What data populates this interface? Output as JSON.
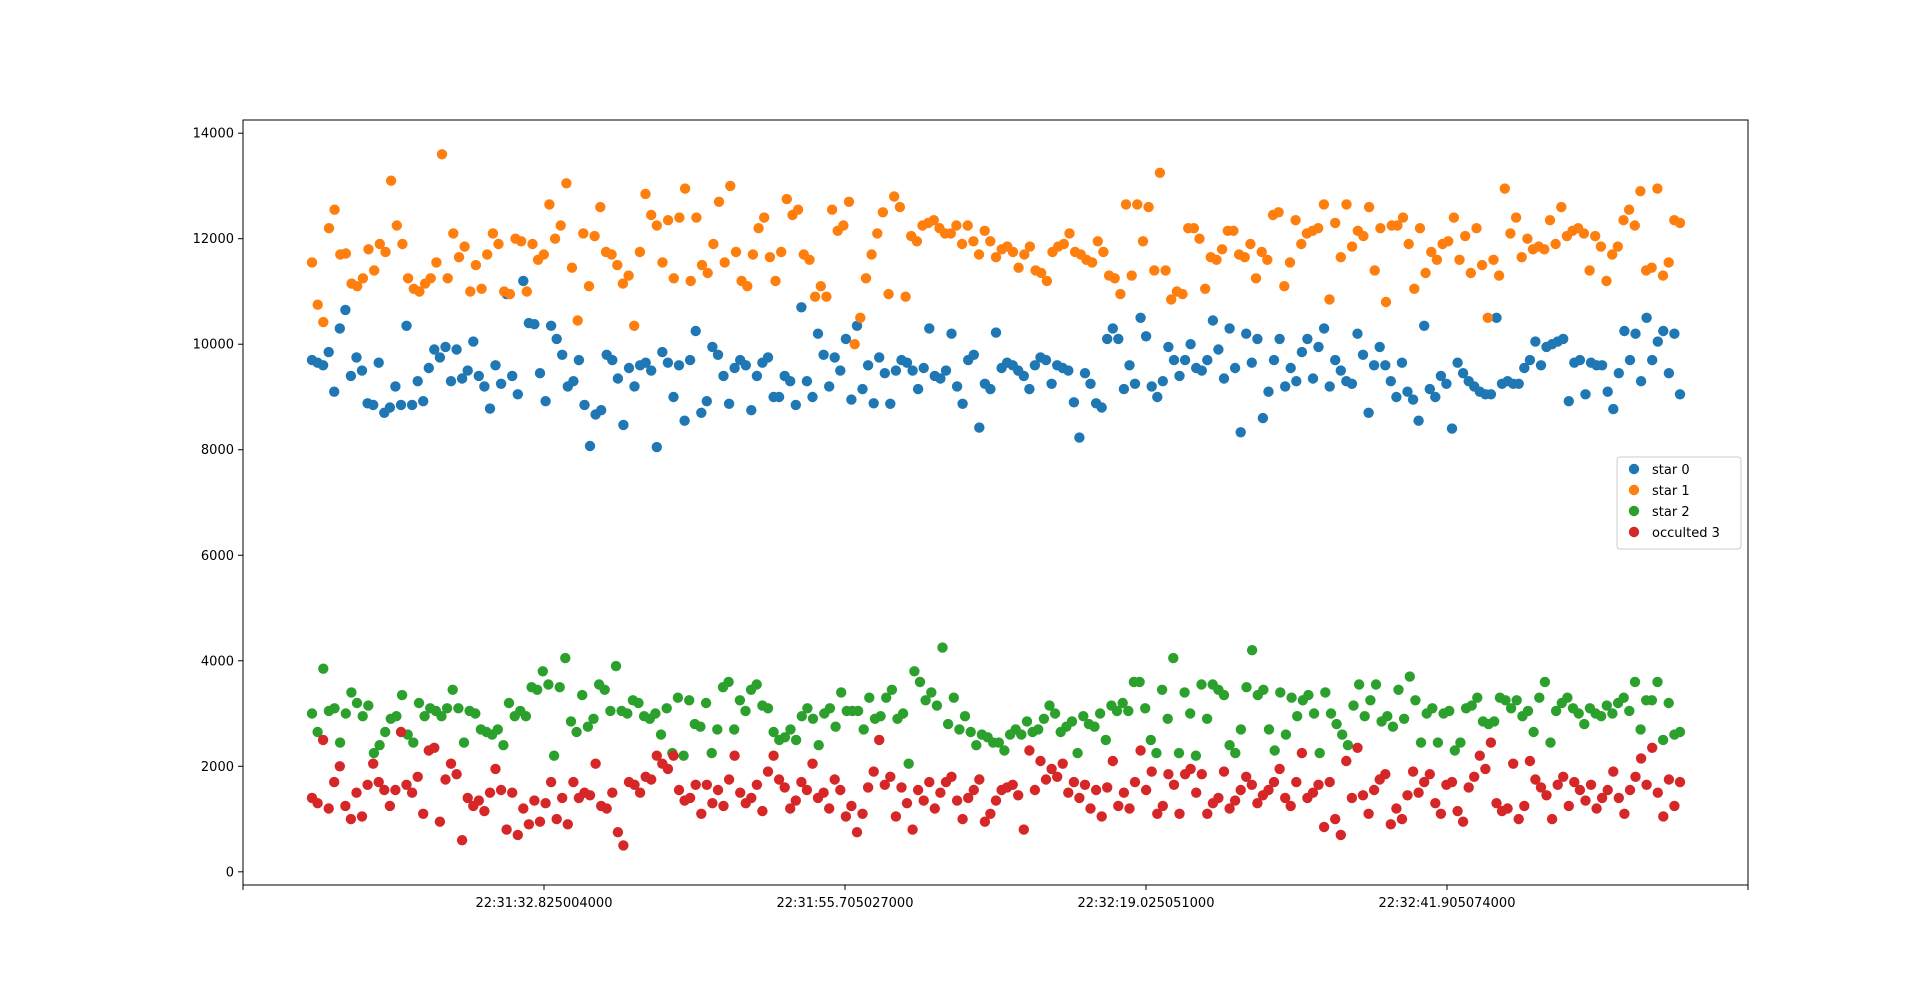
{
  "chart_data": {
    "type": "scatter",
    "title": "",
    "xlabel": "",
    "ylabel": "",
    "x_tick_labels": [
      "22:31:32.825004000",
      "22:31:55.705027000",
      "22:32:19.025051000",
      "22:32:41.905074000"
    ],
    "y_ticks": [
      0,
      2000,
      4000,
      6000,
      8000,
      10000,
      12000,
      14000
    ],
    "ylim": [
      -250,
      14250
    ],
    "grid": false,
    "legend_position": "center-right",
    "series": [
      {
        "name": "star 0",
        "color": "#1f77b4",
        "values": [
          9700,
          9650,
          9600,
          9850,
          9100,
          10300,
          10650,
          9400,
          9750,
          9500,
          8880,
          8850,
          9650,
          8700,
          8800,
          9200,
          8850,
          10350,
          8850,
          9300,
          8920,
          9550,
          9900,
          9750,
          9950,
          9300,
          9900,
          9350,
          9500,
          10050,
          9400,
          9200,
          8780,
          9600,
          9250,
          10950,
          9400,
          9050,
          11200,
          10400,
          10380,
          9450,
          8920,
          10350,
          10100,
          9800,
          9200,
          9300,
          9700,
          8850,
          8070,
          8670,
          8750,
          9800,
          9700,
          9350,
          8470,
          9550,
          9200,
          9600,
          9650,
          9500,
          8050,
          9850,
          9650,
          9000,
          9600,
          8550,
          9700,
          10250,
          8700,
          8920,
          9950,
          9800,
          9400,
          8870,
          9550,
          9700,
          9600,
          8750,
          9400,
          9650,
          9750,
          9000,
          9000,
          9400,
          9300,
          8850,
          10700,
          9300,
          9000,
          10200,
          9800,
          9200,
          9750,
          9500,
          10100,
          8950,
          10350,
          9150,
          9600,
          8880,
          9750,
          9450,
          8870,
          9500,
          9700,
          9650,
          9500,
          9150,
          9550,
          10300,
          9400,
          9350,
          9500,
          10200,
          9200,
          8870,
          9700,
          9800,
          8420,
          9250,
          9150,
          10220,
          9550,
          9650,
          9600,
          9500,
          9400,
          9150,
          9600,
          9750,
          9700,
          9250,
          9600,
          9550,
          9500,
          8900,
          8230,
          9450,
          9250,
          8880,
          8800,
          10100,
          10300,
          10100,
          9150,
          9600,
          9250,
          10500,
          10150,
          9200,
          9000,
          9300,
          9950,
          9700,
          9400,
          9700,
          10000,
          9550,
          9500,
          9700,
          10450,
          9900,
          9350,
          10300,
          9550,
          8330,
          10200,
          9650,
          10100,
          8600,
          9100,
          9700,
          10100,
          9200,
          9550,
          9300,
          9850,
          10100,
          9350,
          9950,
          10300,
          9200,
          9700,
          9500,
          9300,
          9250,
          10200,
          9800,
          8700,
          9600,
          9950,
          9600,
          9300,
          9000,
          9650,
          9100,
          8950,
          8550,
          10350,
          9150,
          9000,
          9400,
          9250,
          8400,
          9650,
          9450,
          9300,
          9200,
          9100,
          9050,
          9050,
          10500,
          9250,
          9300,
          9250,
          9250,
          9550,
          9700,
          10050,
          9600,
          9950,
          10000,
          10050,
          10100,
          8920,
          9650,
          9700,
          9050,
          9650,
          9600,
          9600,
          9100,
          8770,
          9450,
          10250,
          9700,
          10200,
          9300,
          10500,
          9700,
          10050,
          10250,
          9450,
          10200,
          9050
        ]
      },
      {
        "name": "star 1",
        "color": "#ff7f0e",
        "values": [
          11550,
          10750,
          10420,
          12200,
          12550,
          11700,
          11720,
          11150,
          11100,
          11250,
          11800,
          11400,
          11900,
          11750,
          13100,
          12250,
          11900,
          11250,
          11050,
          11000,
          11150,
          11250,
          11550,
          13600,
          11250,
          12100,
          11650,
          11850,
          11000,
          11500,
          11050,
          11700,
          12100,
          11900,
          11000,
          10950,
          12000,
          11950,
          11000,
          11900,
          11600,
          11700,
          12650,
          12000,
          12250,
          13050,
          11450,
          10450,
          12100,
          11100,
          12050,
          12600,
          11750,
          11700,
          11500,
          11150,
          11300,
          10350,
          11750,
          12850,
          12450,
          12250,
          11550,
          12350,
          11250,
          12400,
          12950,
          11200,
          12400,
          11500,
          11350,
          11900,
          12700,
          11550,
          13000,
          11750,
          11200,
          11100,
          11700,
          12200,
          12400,
          11650,
          11200,
          11750,
          12750,
          12450,
          12550,
          11700,
          11600,
          10900,
          11100,
          10900,
          12550,
          12150,
          12250,
          12700,
          10000,
          10500,
          11250,
          11700,
          12100,
          12500,
          10950,
          12800,
          12600,
          10900,
          12050,
          11950,
          12250,
          12300,
          12350,
          12200,
          12100,
          12100,
          12250,
          11900,
          12250,
          11950,
          11700,
          12150,
          11950,
          11650,
          11800,
          11850,
          11750,
          11450,
          11700,
          11850,
          11400,
          11350,
          11200,
          11750,
          11850,
          11900,
          12100,
          11750,
          11700,
          11600,
          11550,
          11950,
          11750,
          11300,
          11250,
          10950,
          12650,
          11300,
          12650,
          11950,
          12600,
          11400,
          13250,
          11400,
          10850,
          11000,
          10950,
          12200,
          12200,
          12000,
          11050,
          11650,
          11600,
          11800,
          12150,
          12150,
          11700,
          11650,
          11900,
          11250,
          11750,
          11600,
          12450,
          12500,
          11100,
          11550,
          12350,
          11900,
          12100,
          12150,
          12200,
          12650,
          10850,
          12300,
          11650,
          12650,
          11850,
          12150,
          12050,
          12600,
          11400,
          12200,
          10800,
          12250,
          12250,
          12400,
          11900,
          11050,
          12200,
          11350,
          11750,
          11600,
          11900,
          11950,
          12400,
          11600,
          12050,
          11350,
          12200,
          11500,
          10500,
          11600,
          11300,
          12950,
          12100,
          12400,
          11650,
          12000,
          11800,
          11850,
          11800,
          12350,
          11900,
          12600,
          12050,
          12150,
          12200,
          12100,
          11400,
          12050,
          11850,
          11200,
          11700,
          11850,
          12350,
          12550,
          12250,
          12900,
          11400,
          11450,
          12950,
          11300,
          11550,
          12350,
          12300
        ]
      },
      {
        "name": "star 2",
        "color": "#2ca02c",
        "values": [
          3000,
          2650,
          3850,
          3050,
          3100,
          2450,
          3000,
          3400,
          3200,
          2950,
          3150,
          2250,
          2400,
          2650,
          2900,
          2950,
          3350,
          2600,
          2450,
          3200,
          2950,
          3100,
          3050,
          2950,
          3100,
          3450,
          3100,
          2450,
          3050,
          3000,
          2700,
          2650,
          2600,
          2700,
          2400,
          3200,
          2950,
          3050,
          2950,
          3500,
          3450,
          3800,
          3550,
          2200,
          3500,
          4050,
          2850,
          2650,
          3350,
          2750,
          2900,
          3550,
          3450,
          3050,
          3900,
          3050,
          3000,
          3250,
          3200,
          2950,
          2900,
          3000,
          2600,
          3100,
          2250,
          3300,
          2200,
          3250,
          2800,
          2750,
          3200,
          2250,
          2700,
          3500,
          3600,
          2700,
          3250,
          3050,
          3450,
          3550,
          3150,
          3100,
          2650,
          2500,
          2550,
          2700,
          2500,
          2950,
          3100,
          2900,
          2400,
          3000,
          3100,
          2750,
          3400,
          3050,
          3050,
          3050,
          2700,
          3300,
          2900,
          2950,
          3300,
          3450,
          2900,
          3000,
          2050,
          3800,
          3600,
          3250,
          3400,
          3150,
          4250,
          2800,
          3300,
          2700,
          2950,
          2650,
          2400,
          2600,
          2550,
          2450,
          2450,
          2300,
          2600,
          2700,
          2600,
          2850,
          2650,
          2700,
          2900,
          3150,
          3000,
          2650,
          2750,
          2850,
          2250,
          2950,
          2800,
          2750,
          3000,
          2500,
          3150,
          3050,
          3200,
          3050,
          3600,
          3600,
          3100,
          2500,
          2250,
          3450,
          2900,
          4050,
          2250,
          3400,
          3000,
          2200,
          3550,
          2900,
          3550,
          3450,
          3350,
          2400,
          2250,
          2700,
          3500,
          4200,
          3350,
          3450,
          2700,
          2300,
          3400,
          2600,
          3300,
          2950,
          3250,
          3350,
          3000,
          2250,
          3400,
          3000,
          2800,
          2600,
          2400,
          3150,
          3550,
          2950,
          3250,
          3550,
          2850,
          2950,
          2750,
          3450,
          2900,
          3700,
          3250,
          2450,
          3000,
          3100,
          2450,
          3000,
          3050,
          2300,
          2450,
          3100,
          3150,
          3300,
          2850,
          2800,
          2850,
          3300,
          3250,
          3100,
          3250,
          2950,
          3050,
          2650,
          3300,
          3600,
          2450,
          3050,
          3200,
          3300,
          3100,
          3000,
          2800,
          3100,
          3000,
          2950,
          3150,
          3000,
          3200,
          3300,
          3050,
          3600,
          2700,
          3250,
          3250,
          3600,
          2500,
          3200,
          2600,
          2650
        ]
      },
      {
        "name": "occulted 3",
        "color": "#d62728",
        "values": [
          1400,
          1300,
          2500,
          1200,
          1700,
          2000,
          1250,
          1000,
          1500,
          1050,
          1650,
          2050,
          1700,
          1550,
          1250,
          1550,
          2650,
          1650,
          1500,
          1800,
          1100,
          2300,
          2350,
          950,
          1750,
          2050,
          1850,
          600,
          1400,
          1250,
          1350,
          1150,
          1500,
          1950,
          1550,
          800,
          1500,
          700,
          1200,
          900,
          1350,
          950,
          1300,
          1700,
          1000,
          1400,
          900,
          1700,
          1400,
          1500,
          1450,
          2050,
          1250,
          1200,
          1500,
          750,
          500,
          1700,
          1650,
          1500,
          1800,
          1750,
          2200,
          2050,
          1950,
          2200,
          1550,
          1350,
          1400,
          1650,
          1100,
          1650,
          1300,
          1550,
          1250,
          1750,
          2200,
          1500,
          1300,
          1400,
          1650,
          1150,
          1900,
          2200,
          1750,
          1600,
          1200,
          1350,
          1700,
          1550,
          2050,
          1400,
          1500,
          1200,
          1750,
          1550,
          1050,
          1250,
          750,
          1100,
          1600,
          1900,
          2500,
          1650,
          1800,
          1050,
          1600,
          1300,
          800,
          1550,
          1350,
          1700,
          1200,
          1500,
          1700,
          1800,
          1350,
          1000,
          1400,
          1550,
          1750,
          950,
          1100,
          1350,
          1550,
          1600,
          1650,
          1450,
          800,
          2300,
          1550,
          2100,
          1750,
          1950,
          1800,
          2050,
          1500,
          1700,
          1400,
          1650,
          1200,
          1550,
          1050,
          1600,
          2100,
          1250,
          1500,
          1200,
          1700,
          2300,
          1550,
          1900,
          1100,
          1250,
          1850,
          1650,
          1100,
          1850,
          1950,
          1500,
          1850,
          1100,
          1300,
          1400,
          1900,
          1200,
          1350,
          1550,
          1800,
          1650,
          1300,
          1450,
          1550,
          1700,
          1950,
          1400,
          1250,
          1700,
          2250,
          1400,
          1500,
          1650,
          850,
          1700,
          1000,
          700,
          2100,
          1400,
          2350,
          1450,
          1100,
          1550,
          1750,
          1850,
          900,
          1200,
          1000,
          1450,
          1900,
          1500,
          1700,
          1850,
          1300,
          1100,
          1650,
          1700,
          1150,
          950,
          1600,
          1800,
          2200,
          1950,
          2450,
          1300,
          1150,
          1200,
          2050,
          1000,
          1250,
          2100,
          1750,
          1600,
          1450,
          1000,
          1650,
          1800,
          1250,
          1700,
          1550,
          1350,
          1650,
          1200,
          1400,
          1550,
          1900,
          1400,
          1100,
          1550,
          1800,
          2150,
          1650,
          2350,
          1500,
          1050,
          1750,
          1250,
          1700
        ]
      }
    ]
  }
}
